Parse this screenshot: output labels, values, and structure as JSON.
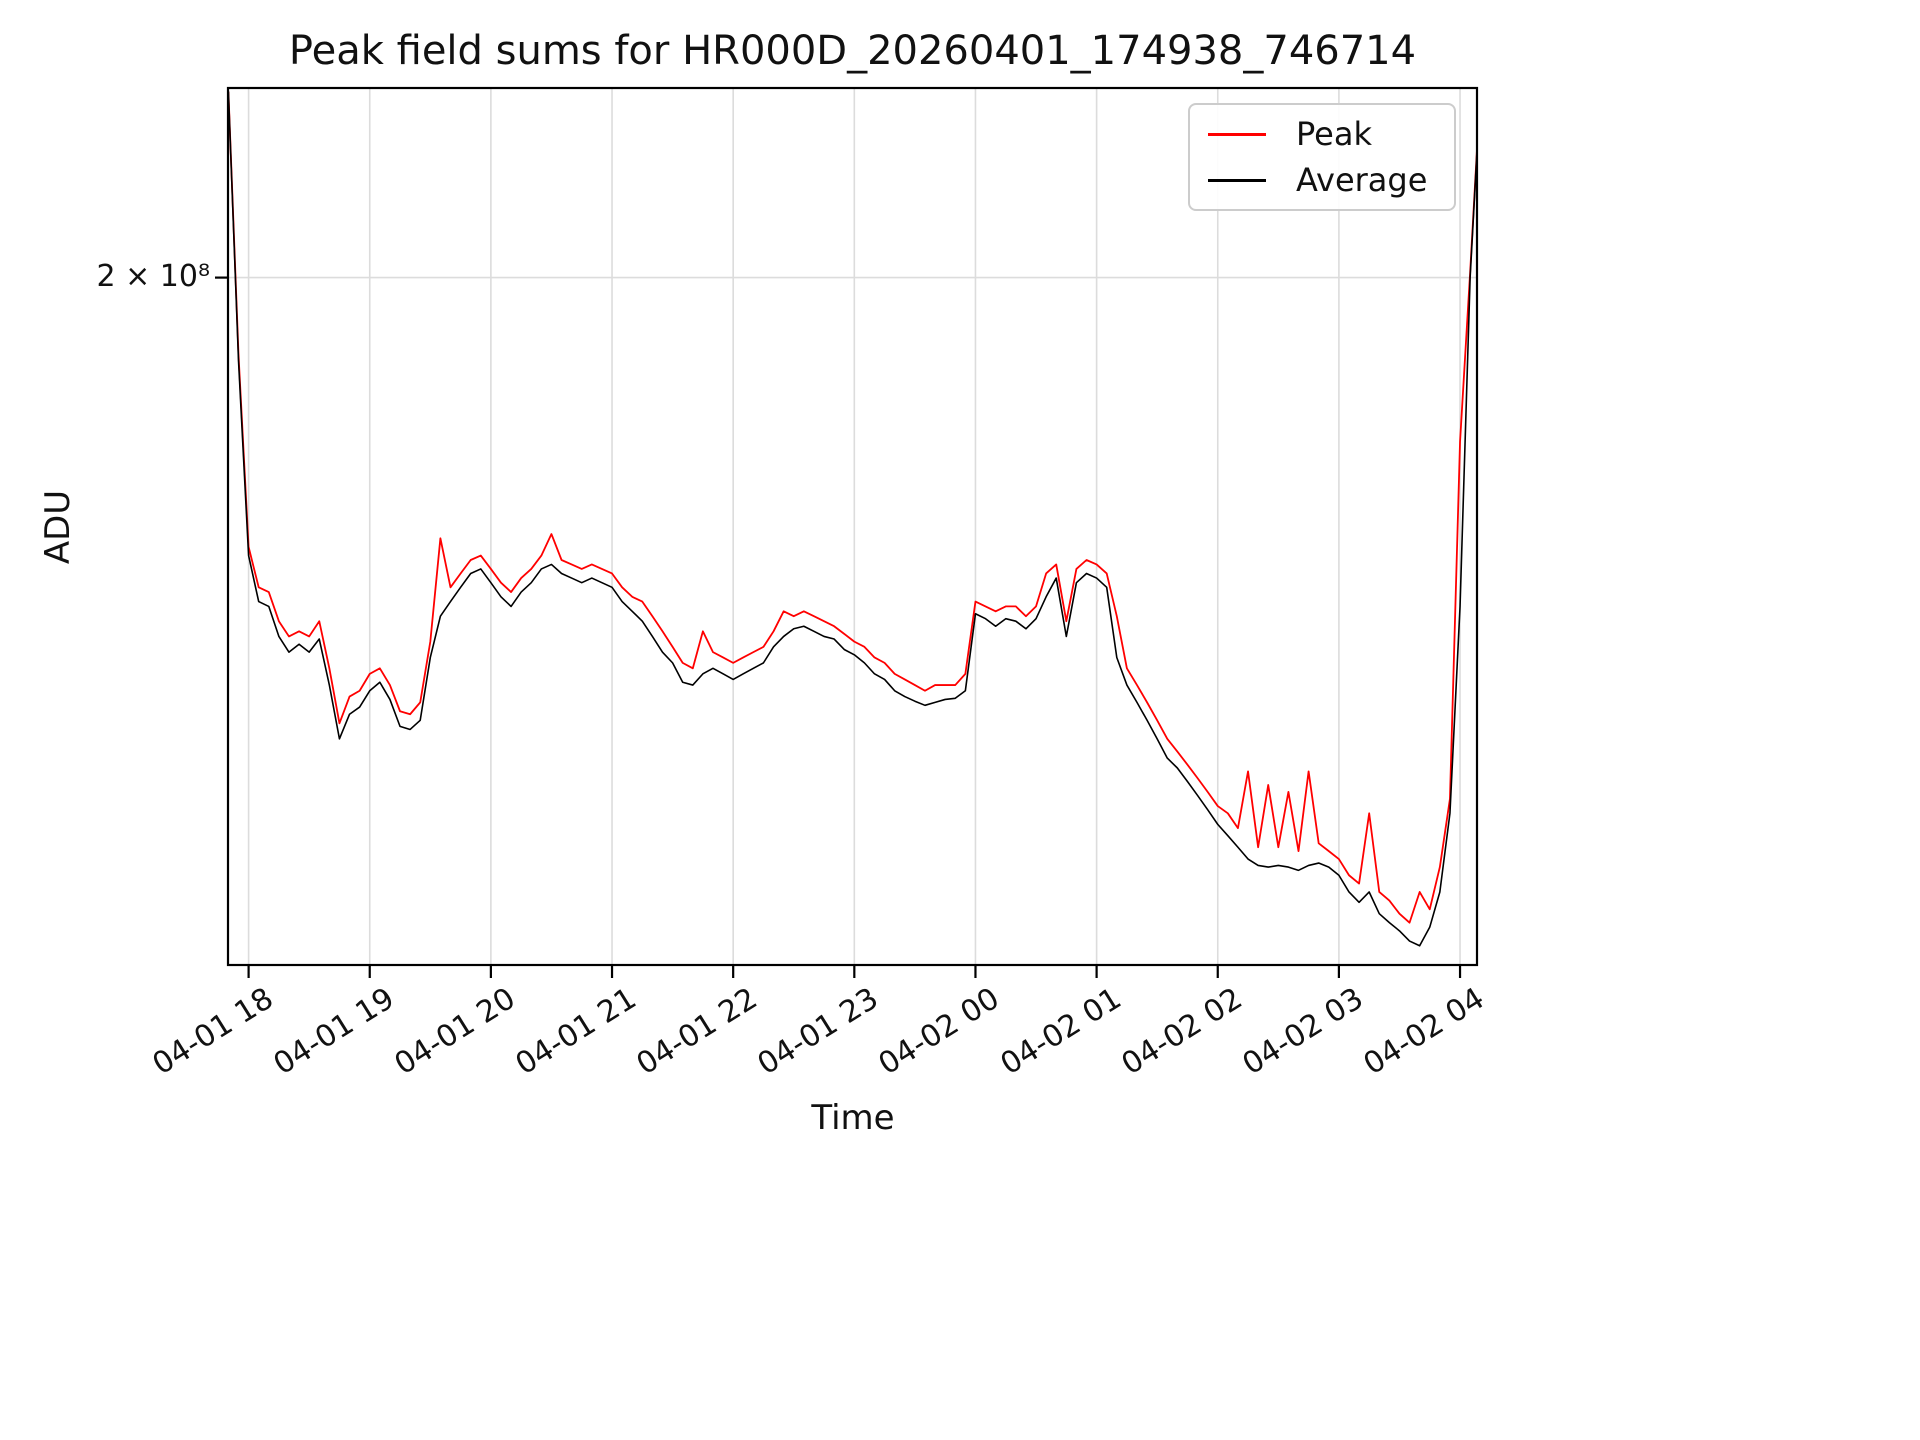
{
  "figure": {
    "background": "#ffffff"
  },
  "chart_data": {
    "type": "line",
    "title": "Peak field sums for HR000D_20260401_174938_746714",
    "xlabel": "Time",
    "ylabel": "ADU",
    "yscale": "log",
    "grid": true,
    "grid_color": "#dcdcdc",
    "xlim_hours": [
      17.83,
      28.14
    ],
    "ylim": [
      52000000,
      290000000
    ],
    "x_ticks": [
      {
        "t": 18,
        "label": "04-01 18"
      },
      {
        "t": 19,
        "label": "04-01 19"
      },
      {
        "t": 20,
        "label": "04-01 20"
      },
      {
        "t": 21,
        "label": "04-01 21"
      },
      {
        "t": 22,
        "label": "04-01 22"
      },
      {
        "t": 23,
        "label": "04-01 23"
      },
      {
        "t": 24,
        "label": "04-02 00"
      },
      {
        "t": 25,
        "label": "04-02 01"
      },
      {
        "t": 26,
        "label": "04-02 02"
      },
      {
        "t": 27,
        "label": "04-02 03"
      },
      {
        "t": 28,
        "label": "04-02 04"
      }
    ],
    "y_ticks": [
      {
        "value": 200000000,
        "label": "2 × 10⁸"
      }
    ],
    "legend": {
      "position": "upper right"
    },
    "sampling": {
      "t0_hours": 17.8333,
      "dt_hours": 0.0833333
    },
    "value_unit": 100000000,
    "series": [
      {
        "name": "Peak",
        "color": "#ff0000",
        "values": [
          2.88,
          1.72,
          1.18,
          1.09,
          1.08,
          1.02,
          0.99,
          1.0,
          0.99,
          1.02,
          0.93,
          0.835,
          0.88,
          0.89,
          0.92,
          0.93,
          0.9,
          0.855,
          0.85,
          0.87,
          0.98,
          1.2,
          1.09,
          1.12,
          1.15,
          1.16,
          1.13,
          1.1,
          1.08,
          1.11,
          1.13,
          1.16,
          1.21,
          1.15,
          1.14,
          1.13,
          1.14,
          1.13,
          1.12,
          1.09,
          1.07,
          1.06,
          1.03,
          1.0,
          0.97,
          0.94,
          0.93,
          1.0,
          0.96,
          0.95,
          0.94,
          0.95,
          0.96,
          0.97,
          1.0,
          1.04,
          1.03,
          1.04,
          1.03,
          1.02,
          1.01,
          0.995,
          0.98,
          0.97,
          0.95,
          0.94,
          0.92,
          0.91,
          0.9,
          0.89,
          0.9,
          0.9,
          0.9,
          0.92,
          1.06,
          1.05,
          1.04,
          1.05,
          1.05,
          1.03,
          1.05,
          1.12,
          1.14,
          1.02,
          1.13,
          1.15,
          1.14,
          1.12,
          1.03,
          0.93,
          0.9,
          0.87,
          0.84,
          0.81,
          0.79,
          0.77,
          0.75,
          0.73,
          0.71,
          0.7,
          0.68,
          0.76,
          0.655,
          0.74,
          0.655,
          0.73,
          0.65,
          0.76,
          0.66,
          0.65,
          0.64,
          0.62,
          0.61,
          0.7,
          0.6,
          0.59,
          0.575,
          0.565,
          0.6,
          0.58,
          0.63,
          0.72,
          1.45,
          2.02,
          2.88
        ]
      },
      {
        "name": "Average",
        "color": "#000000",
        "values": [
          2.88,
          1.7,
          1.16,
          1.06,
          1.05,
          0.99,
          0.96,
          0.975,
          0.96,
          0.985,
          0.9,
          0.81,
          0.85,
          0.862,
          0.89,
          0.905,
          0.875,
          0.83,
          0.825,
          0.84,
          0.95,
          1.03,
          1.06,
          1.09,
          1.12,
          1.13,
          1.1,
          1.07,
          1.05,
          1.08,
          1.1,
          1.13,
          1.14,
          1.12,
          1.11,
          1.1,
          1.11,
          1.1,
          1.09,
          1.06,
          1.04,
          1.02,
          0.99,
          0.96,
          0.94,
          0.905,
          0.9,
          0.92,
          0.93,
          0.92,
          0.91,
          0.92,
          0.93,
          0.94,
          0.97,
          0.99,
          1.005,
          1.01,
          1.0,
          0.99,
          0.985,
          0.965,
          0.955,
          0.94,
          0.92,
          0.91,
          0.89,
          0.88,
          0.872,
          0.865,
          0.87,
          0.875,
          0.877,
          0.89,
          1.035,
          1.025,
          1.01,
          1.025,
          1.02,
          1.005,
          1.025,
          1.07,
          1.11,
          0.99,
          1.1,
          1.12,
          1.11,
          1.09,
          0.95,
          0.9,
          0.87,
          0.84,
          0.81,
          0.78,
          0.765,
          0.745,
          0.725,
          0.705,
          0.685,
          0.67,
          0.655,
          0.64,
          0.632,
          0.63,
          0.632,
          0.63,
          0.626,
          0.632,
          0.635,
          0.63,
          0.62,
          0.6,
          0.588,
          0.6,
          0.575,
          0.565,
          0.556,
          0.545,
          0.54,
          0.56,
          0.6,
          0.7,
          1.05,
          2.0,
          2.88
        ]
      }
    ]
  }
}
